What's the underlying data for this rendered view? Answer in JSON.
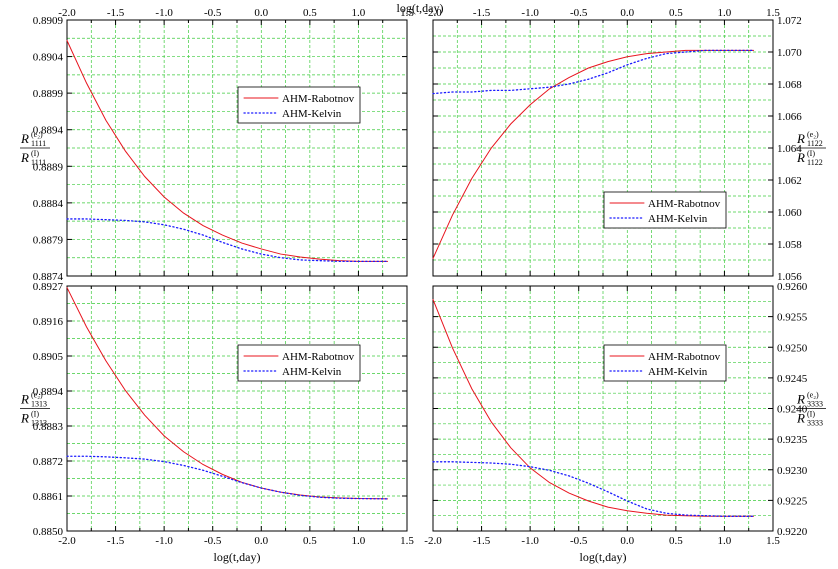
{
  "figure": {
    "top_axis_label": "log(t,day)",
    "bottom_axis_label": "log(t,day)"
  },
  "x_tick_labels": [
    "-2.0",
    "-1.5",
    "-1.0",
    "-0.5",
    "0.0",
    "0.5",
    "1.0",
    "1.5"
  ],
  "colors": {
    "rabotnov": "#e8141e",
    "kelvin": "#1a1aff",
    "grid": "#3ccb3c",
    "axis": "#000000"
  },
  "chart_data": [
    {
      "type": "line",
      "panel": "top-left",
      "ylabel": {
        "num": "R(e₂)1111",
        "den": "R(I)1111"
      },
      "xlim": [
        -2.0,
        1.5
      ],
      "ylim": [
        0.8874,
        0.8909
      ],
      "yticks": [
        0.8874,
        0.8879,
        0.8884,
        0.8889,
        0.8894,
        0.8899,
        0.8904,
        0.8909
      ],
      "ytick_labels": [
        "0.8874",
        "0.8879",
        "0.8884",
        "0.8889",
        "0.8894",
        "0.8899",
        "0.8904",
        "0.8909"
      ],
      "legend_placement": "top-center",
      "grid": true,
      "series": [
        {
          "name": "AHM-Rabotnov",
          "style": "solid",
          "x": [
            -2.0,
            -1.8,
            -1.6,
            -1.4,
            -1.2,
            -1.0,
            -0.8,
            -0.6,
            -0.4,
            -0.2,
            0.0,
            0.2,
            0.4,
            0.6,
            0.8,
            1.0,
            1.3
          ],
          "values": [
            0.89062,
            0.89004,
            0.88953,
            0.88911,
            0.88876,
            0.88848,
            0.88826,
            0.88809,
            0.88796,
            0.88785,
            0.88777,
            0.8877,
            0.88766,
            0.88763,
            0.88761,
            0.8876,
            0.8876
          ]
        },
        {
          "name": "AHM-Kelvin",
          "style": "dotted",
          "x": [
            -2.0,
            -1.8,
            -1.6,
            -1.4,
            -1.2,
            -1.0,
            -0.8,
            -0.6,
            -0.4,
            -0.2,
            0.0,
            0.2,
            0.4,
            0.6,
            0.8,
            1.0,
            1.3
          ],
          "values": [
            0.88818,
            0.88818,
            0.88817,
            0.88816,
            0.88814,
            0.8881,
            0.88804,
            0.88796,
            0.88786,
            0.88777,
            0.8877,
            0.88765,
            0.88762,
            0.88761,
            0.8876,
            0.8876,
            0.8876
          ]
        }
      ]
    },
    {
      "type": "line",
      "panel": "top-right",
      "ylabel": {
        "num": "R(e₂)1122",
        "den": "R(I)1122"
      },
      "xlim": [
        -2.0,
        1.5
      ],
      "ylim": [
        1.056,
        1.072
      ],
      "yticks": [
        1.056,
        1.058,
        1.06,
        1.062,
        1.064,
        1.066,
        1.068,
        1.07,
        1.072
      ],
      "ytick_labels": [
        "1.056",
        "1.058",
        "1.060",
        "1.062",
        "1.064",
        "1.066",
        "1.068",
        "1.070",
        "1.072"
      ],
      "legend_placement": "bottom-right",
      "grid": true,
      "series": [
        {
          "name": "AHM-Rabotnov",
          "style": "solid",
          "x": [
            -2.0,
            -1.8,
            -1.6,
            -1.4,
            -1.2,
            -1.0,
            -0.8,
            -0.6,
            -0.4,
            -0.2,
            0.0,
            0.2,
            0.4,
            0.6,
            0.8,
            1.0,
            1.3
          ],
          "values": [
            1.0571,
            1.0598,
            1.0621,
            1.064,
            1.0655,
            1.0667,
            1.0677,
            1.0684,
            1.069,
            1.0694,
            1.0697,
            1.0699,
            1.07,
            1.0701,
            1.0701,
            1.0701,
            1.0701
          ]
        },
        {
          "name": "AHM-Kelvin",
          "style": "dotted",
          "x": [
            -2.0,
            -1.8,
            -1.6,
            -1.4,
            -1.2,
            -1.0,
            -0.8,
            -0.6,
            -0.4,
            -0.2,
            0.0,
            0.2,
            0.4,
            0.6,
            0.8,
            1.0,
            1.3
          ],
          "values": [
            1.0674,
            1.0675,
            1.0675,
            1.0676,
            1.0676,
            1.0677,
            1.0678,
            1.068,
            1.0683,
            1.0687,
            1.0692,
            1.0696,
            1.0699,
            1.07,
            1.0701,
            1.0701,
            1.0701
          ]
        }
      ]
    },
    {
      "type": "line",
      "panel": "bottom-left",
      "ylabel": {
        "num": "R(e₂)1313",
        "den": "R(I)1313"
      },
      "xlim": [
        -2.0,
        1.5
      ],
      "ylim": [
        0.885,
        0.8927
      ],
      "yticks": [
        0.885,
        0.8861,
        0.8872,
        0.8883,
        0.8894,
        0.8905,
        0.8916,
        0.8927
      ],
      "ytick_labels": [
        "0.8850",
        "0.8861",
        "0.8872",
        "0.8883",
        "0.8894",
        "0.8905",
        "0.8916",
        "0.8927"
      ],
      "legend_placement": "top-right",
      "grid": true,
      "series": [
        {
          "name": "AHM-Rabotnov",
          "style": "solid",
          "x": [
            -2.0,
            -1.8,
            -1.6,
            -1.4,
            -1.2,
            -1.0,
            -0.8,
            -0.6,
            -0.4,
            -0.2,
            0.0,
            0.2,
            0.4,
            0.6,
            0.8,
            1.0,
            1.3
          ],
          "values": [
            0.89265,
            0.89142,
            0.89035,
            0.88942,
            0.88864,
            0.88799,
            0.88749,
            0.88709,
            0.88678,
            0.88653,
            0.88635,
            0.88622,
            0.88613,
            0.88607,
            0.88604,
            0.88602,
            0.88601
          ]
        },
        {
          "name": "AHM-Kelvin",
          "style": "dotted",
          "x": [
            -2.0,
            -1.8,
            -1.6,
            -1.4,
            -1.2,
            -1.0,
            -0.8,
            -0.6,
            -0.4,
            -0.2,
            0.0,
            0.2,
            0.4,
            0.6,
            0.8,
            1.0,
            1.3
          ],
          "values": [
            0.88735,
            0.88735,
            0.88733,
            0.8873,
            0.88726,
            0.88718,
            0.88706,
            0.88691,
            0.88672,
            0.88652,
            0.88635,
            0.88622,
            0.88612,
            0.88606,
            0.88603,
            0.88602,
            0.88601
          ]
        }
      ]
    },
    {
      "type": "line",
      "panel": "bottom-right",
      "ylabel": {
        "num": "R(e₂)3333",
        "den": "R(I)3333"
      },
      "xlim": [
        -2.0,
        1.5
      ],
      "ylim": [
        0.922,
        0.926
      ],
      "yticks": [
        0.922,
        0.9225,
        0.923,
        0.9235,
        0.924,
        0.9245,
        0.925,
        0.9255,
        0.926
      ],
      "ytick_labels": [
        "0.9220",
        "0.9225",
        "0.9230",
        "0.9235",
        "0.9240",
        "0.9245",
        "0.9250",
        "0.9255",
        "0.9260"
      ],
      "legend_placement": "top-right",
      "grid": true,
      "series": [
        {
          "name": "AHM-Rabotnov",
          "style": "solid",
          "x": [
            -2.0,
            -1.8,
            -1.6,
            -1.4,
            -1.2,
            -1.0,
            -0.8,
            -0.6,
            -0.4,
            -0.2,
            0.0,
            0.2,
            0.4,
            0.6,
            0.8,
            1.0,
            1.3
          ],
          "values": [
            0.92578,
            0.92499,
            0.92432,
            0.92378,
            0.92336,
            0.92303,
            0.92279,
            0.92262,
            0.92249,
            0.92239,
            0.92233,
            0.92229,
            0.92226,
            0.92225,
            0.92224,
            0.92224,
            0.92224
          ]
        },
        {
          "name": "AHM-Kelvin",
          "style": "dotted",
          "x": [
            -2.0,
            -1.8,
            -1.6,
            -1.4,
            -1.2,
            -1.0,
            -0.8,
            -0.6,
            -0.4,
            -0.2,
            0.0,
            0.2,
            0.4,
            0.6,
            0.8,
            1.0,
            1.3
          ],
          "values": [
            0.92313,
            0.92313,
            0.92312,
            0.92311,
            0.92309,
            0.92305,
            0.92299,
            0.9229,
            0.92278,
            0.92264,
            0.92249,
            0.92236,
            0.92229,
            0.92226,
            0.92225,
            0.92224,
            0.92224
          ]
        }
      ]
    }
  ]
}
